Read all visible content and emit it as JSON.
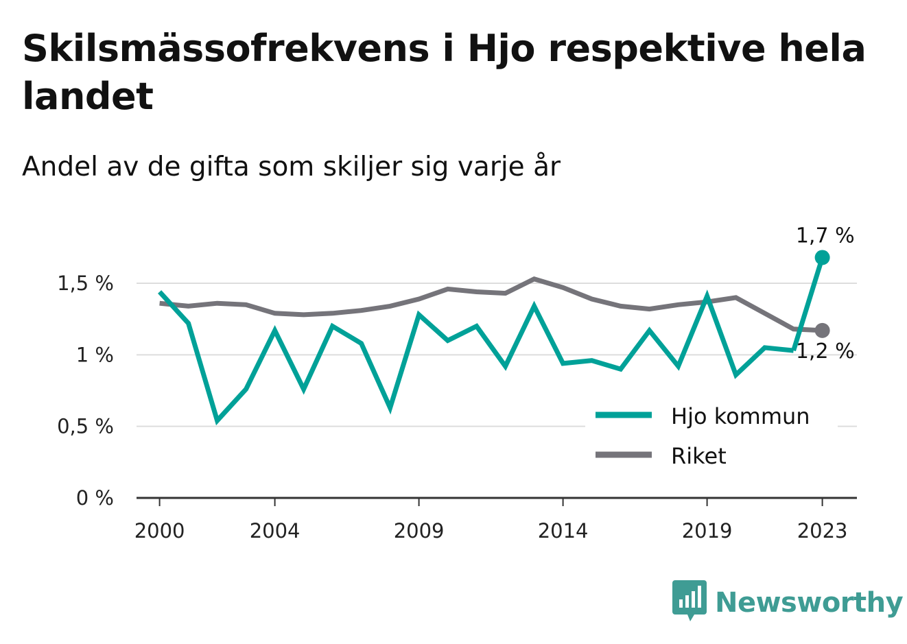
{
  "title": "Skilsmässofrekvens i Hjo respektive hela landet",
  "subtitle": "Andel av de gifta som skiljer sig varje år",
  "brand": {
    "name": "Newsworthy",
    "icon": "bar-chart-speech-icon"
  },
  "colors": {
    "hjo": "#00a198",
    "riket": "#75747a",
    "grid": "#dddddd",
    "axis": "#333333",
    "brand": "#3f9c94"
  },
  "chart_data": {
    "type": "line",
    "x": [
      2000,
      2001,
      2002,
      2003,
      2004,
      2005,
      2006,
      2007,
      2008,
      2009,
      2010,
      2011,
      2012,
      2013,
      2014,
      2015,
      2016,
      2017,
      2018,
      2019,
      2020,
      2021,
      2022,
      2023
    ],
    "x_tick_labels": [
      "2000",
      "2004",
      "2009",
      "2014",
      "2019",
      "2023"
    ],
    "x_tick_values": [
      2000,
      2004,
      2009,
      2014,
      2019,
      2023
    ],
    "y_tick_values": [
      0,
      0.5,
      1,
      1.5
    ],
    "y_tick_labels": [
      "0 %",
      "0,5 %",
      "1 %",
      "1,5 %"
    ],
    "ylim": [
      0,
      1.85
    ],
    "xlim": [
      1999.2,
      2024.2
    ],
    "grid": true,
    "legend_position": "bottom-right",
    "series": [
      {
        "name": "Hjo kommun",
        "color": "#00a198",
        "values": [
          1.44,
          1.22,
          0.54,
          0.76,
          1.17,
          0.76,
          1.2,
          1.08,
          0.63,
          1.28,
          1.1,
          1.2,
          0.92,
          1.34,
          0.94,
          0.96,
          0.9,
          1.17,
          0.92,
          1.41,
          0.86,
          1.05,
          1.03,
          1.68
        ],
        "segments": [
          [
            0,
            22
          ],
          [
            22,
            23
          ]
        ],
        "end_label": "1,7 %"
      },
      {
        "name": "Riket",
        "color": "#75747a",
        "values": [
          1.36,
          1.34,
          1.36,
          1.35,
          1.29,
          1.28,
          1.29,
          1.31,
          1.34,
          1.39,
          1.46,
          1.44,
          1.43,
          1.53,
          1.47,
          1.39,
          1.34,
          1.32,
          1.35,
          1.37,
          1.4,
          1.29,
          1.18,
          1.17
        ],
        "segments": [
          [
            0,
            23
          ]
        ],
        "end_label": "1,2 %"
      }
    ]
  }
}
